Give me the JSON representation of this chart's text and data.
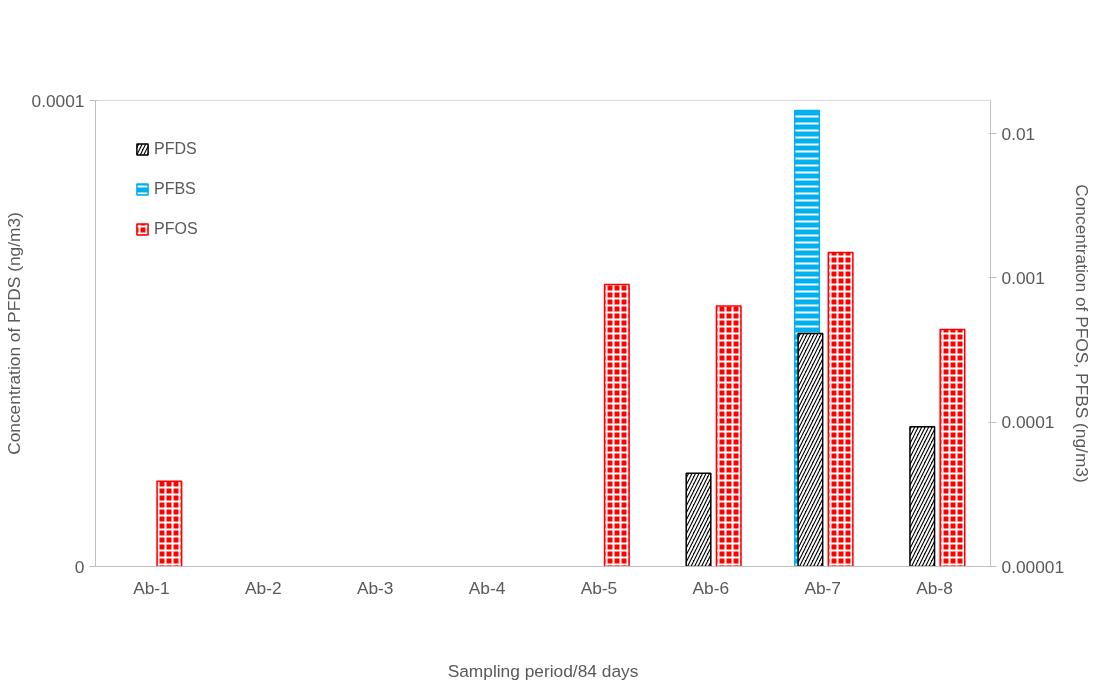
{
  "chart_data": {
    "type": "bar",
    "categories": [
      "Ab-1",
      "Ab-2",
      "Ab-3",
      "Ab-4",
      "Ab-5",
      "Ab-6",
      "Ab-7",
      "Ab-8"
    ],
    "xlabel": "Sampling period/84 days",
    "ylabel": "Concentration of PFDS (ng/m3)",
    "y2label": "Concentration of PFOS, PFBS (ng/m3)",
    "ylim": [
      0,
      0.0001
    ],
    "yticks": [
      0,
      0.0001
    ],
    "y2lim": [
      1e-05,
      0.017
    ],
    "y2ticks": [
      {
        "value": 1e-05,
        "label": "0.00001"
      },
      0.0001,
      0.001,
      0.01
    ],
    "log": "y2",
    "legend": "top left",
    "grid": false,
    "series": [
      {
        "name": "PFDS",
        "color": "#000000",
        "values": [
          null,
          null,
          null,
          null,
          null,
          2e-05,
          5e-05,
          3e-05
        ]
      },
      {
        "name": "PFBS",
        "color": "#00b0f0",
        "axis": "y2",
        "values": [
          null,
          null,
          null,
          null,
          null,
          null,
          0.0145,
          null
        ]
      },
      {
        "name": "PFOS",
        "color": "#ff0000",
        "axis": "y2",
        "values": [
          3.9e-05,
          null,
          null,
          null,
          0.0009,
          0.00064,
          0.0015,
          0.00044
        ]
      }
    ]
  }
}
